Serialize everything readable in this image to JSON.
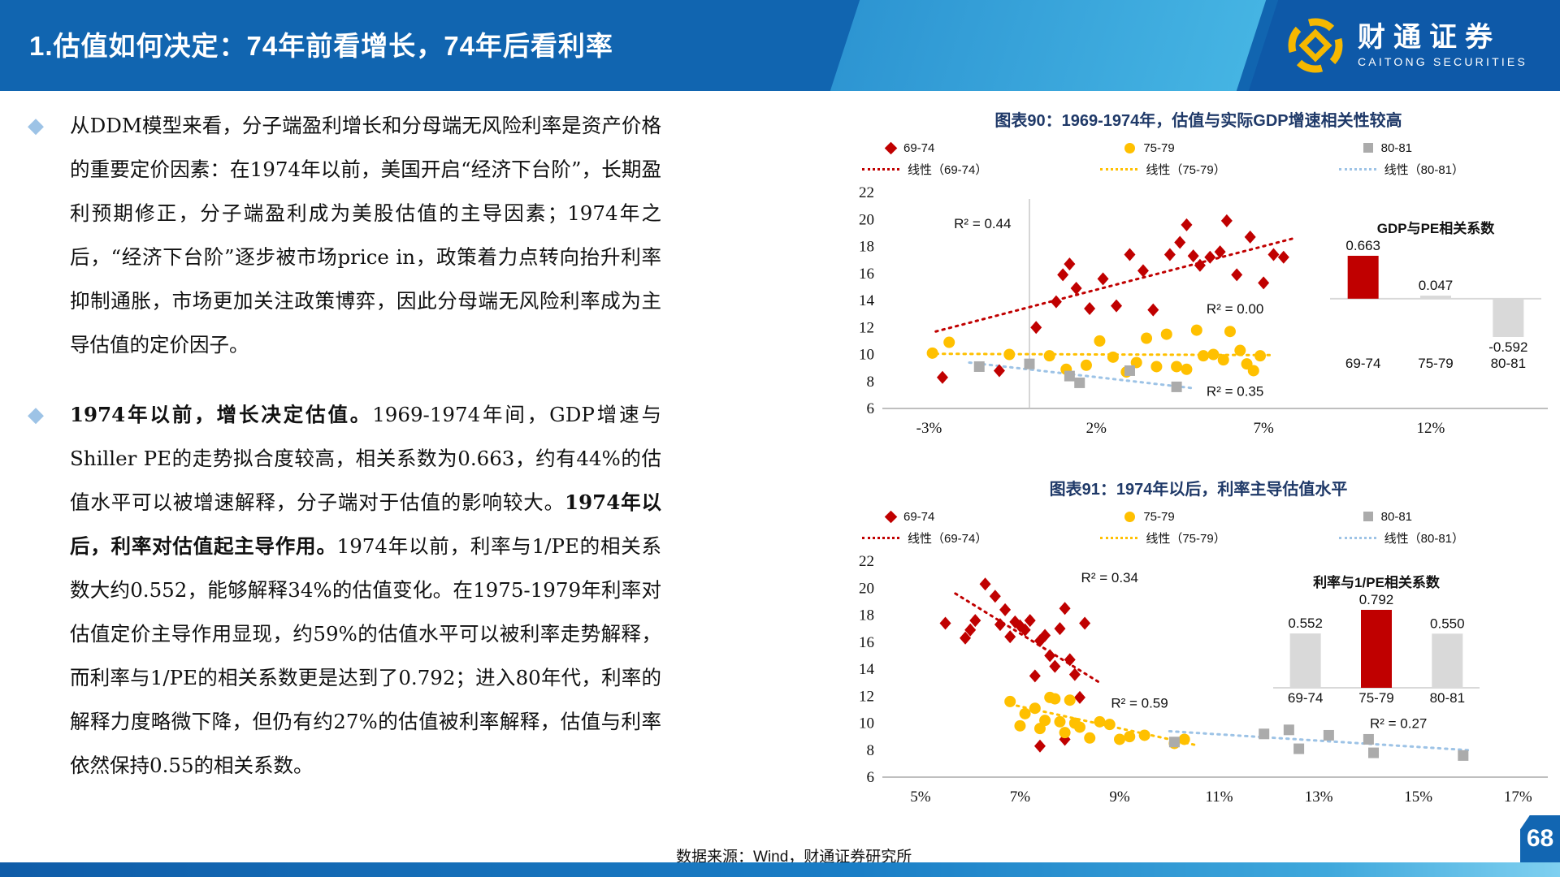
{
  "header": {
    "title": "1.估值如何决定：74年前看增长，74年后看利率",
    "logo": {
      "cn": "财通证券",
      "en": "CAITONG SECURITIES"
    }
  },
  "body": {
    "paragraphs": [
      {
        "segments": [
          {
            "bold": false,
            "text": "从DDM模型来看，分子端盈利增长和分母端无风险利率是资产价格的重要定价因素：在1974年以前，美国开启“经济下台阶”，长期盈利预期修正，分子端盈利成为美股估值的主导因素；1974年之后，“经济下台阶”逐步被市场price in，政策着力点转向抬升利率抑制通胀，市场更加关注政策博弈，因此分母端无风险利率成为主导估值的定价因子。"
          }
        ]
      },
      {
        "segments": [
          {
            "bold": true,
            "text": "1974年以前，增长决定估值。"
          },
          {
            "bold": false,
            "text": "1969-1974年间，GDP增速与Shiller PE的走势拟合度较高，相关系数为0.663，约有44%的估值水平可以被增速解释，分子端对于估值的影响较大。"
          },
          {
            "bold": true,
            "text": "1974年以后，利率对估值起主导作用。"
          },
          {
            "bold": false,
            "text": "1974年以前，利率与1/PE的相关系数大约0.552，能够解释34%的估值变化。在1975-1979年利率对估值定价主导作用显现，约59%的估值水平可以被利率走势解释，而利率与1/PE的相关系数更是达到了0.792；进入80年代，利率的解释力度略微下降，但仍有约27%的估值被利率解释，估值与利率依然保持0.55的相关系数。"
          }
        ]
      }
    ]
  },
  "footer": {
    "source": "数据来源：Wind，财通证券研究所",
    "page_number": "68"
  },
  "colors": {
    "header_blue": "#1165b0",
    "header_light": "#45b4e3",
    "navy": "#1f3968",
    "red": "#c00000",
    "yellow": "#ffc000",
    "gray": "#ababab",
    "light_blue": "#9dc3e6",
    "inset_gray": "#d9d9d9",
    "bullet": "#9dc3e6"
  },
  "chart_data": [
    {
      "type": "scatter",
      "title": "图表90：1969-1974年，估值与实际GDP增速相关性较高",
      "xlim": [
        -4.3,
        15.5
      ],
      "ylim": [
        6,
        22
      ],
      "xticks": [
        {
          "v": -3,
          "label": "-3%"
        },
        {
          "v": 2,
          "label": "2%"
        },
        {
          "v": 7,
          "label": "7%"
        },
        {
          "v": 12,
          "label": "12%"
        }
      ],
      "yticks": [
        6,
        8,
        10,
        12,
        14,
        16,
        18,
        20,
        22
      ],
      "vline_x": 0,
      "legend": {
        "markers": [
          {
            "label": "69-74",
            "shape": "diamond",
            "color": "#c00000"
          },
          {
            "label": "75-79",
            "shape": "circle",
            "color": "#ffc000"
          },
          {
            "label": "80-81",
            "shape": "square",
            "color": "#ababab"
          }
        ],
        "lines": [
          {
            "label": "线性（69-74）",
            "color": "#c00000"
          },
          {
            "label": "线性（75-79）",
            "color": "#ffc000"
          },
          {
            "label": "线性（80-81）",
            "color": "#9dc3e6"
          }
        ]
      },
      "series": [
        {
          "name": "69-74",
          "marker": "diamond",
          "color": "#c00000",
          "points": [
            [
              -2.6,
              8.3
            ],
            [
              -0.9,
              8.8
            ],
            [
              0.2,
              12.0
            ],
            [
              0.8,
              13.9
            ],
            [
              1.0,
              15.9
            ],
            [
              1.2,
              16.7
            ],
            [
              1.4,
              14.9
            ],
            [
              1.8,
              13.4
            ],
            [
              2.2,
              15.6
            ],
            [
              2.6,
              13.6
            ],
            [
              3.0,
              17.4
            ],
            [
              3.4,
              16.2
            ],
            [
              3.7,
              13.3
            ],
            [
              4.2,
              17.4
            ],
            [
              4.5,
              18.3
            ],
            [
              4.7,
              19.6
            ],
            [
              4.9,
              17.3
            ],
            [
              5.1,
              16.6
            ],
            [
              5.4,
              17.2
            ],
            [
              5.7,
              17.6
            ],
            [
              5.9,
              19.9
            ],
            [
              6.2,
              15.9
            ],
            [
              6.6,
              18.7
            ],
            [
              7.0,
              15.3
            ],
            [
              7.3,
              17.4
            ],
            [
              7.6,
              17.2
            ]
          ]
        },
        {
          "name": "75-79",
          "marker": "circle",
          "color": "#ffc000",
          "points": [
            [
              -2.9,
              10.1
            ],
            [
              -2.4,
              10.9
            ],
            [
              -0.6,
              10.0
            ],
            [
              0.6,
              9.9
            ],
            [
              1.1,
              8.9
            ],
            [
              1.7,
              9.2
            ],
            [
              2.1,
              11.0
            ],
            [
              2.5,
              9.8
            ],
            [
              2.9,
              8.7
            ],
            [
              3.2,
              9.4
            ],
            [
              3.5,
              11.2
            ],
            [
              3.8,
              9.1
            ],
            [
              4.1,
              11.5
            ],
            [
              4.4,
              9.1
            ],
            [
              4.7,
              8.9
            ],
            [
              5.0,
              11.8
            ],
            [
              5.2,
              9.9
            ],
            [
              5.5,
              10.0
            ],
            [
              5.8,
              9.6
            ],
            [
              6.0,
              11.7
            ],
            [
              6.3,
              10.3
            ],
            [
              6.5,
              9.3
            ],
            [
              6.7,
              8.8
            ],
            [
              6.9,
              9.9
            ]
          ]
        },
        {
          "name": "80-81",
          "marker": "square",
          "color": "#ababab",
          "points": [
            [
              -1.5,
              9.1
            ],
            [
              0.0,
              9.3
            ],
            [
              1.2,
              8.4
            ],
            [
              1.5,
              7.9
            ],
            [
              3.0,
              8.8
            ],
            [
              4.4,
              7.6
            ]
          ]
        }
      ],
      "trendlines": [
        {
          "name": "线性（69-74）",
          "color": "#c00000",
          "from": [
            -2.8,
            11.7
          ],
          "to": [
            7.9,
            18.6
          ]
        },
        {
          "name": "线性（75-79）",
          "color": "#ffc000",
          "from": [
            -3.0,
            10.05
          ],
          "to": [
            7.3,
            9.95
          ]
        },
        {
          "name": "线性（80-81）",
          "color": "#9dc3e6",
          "from": [
            -1.8,
            9.4
          ],
          "to": [
            4.9,
            7.5
          ]
        }
      ],
      "annotations": [
        {
          "text": "R² = 0.44",
          "x": -1.4,
          "y": 19.7
        },
        {
          "text": "R² = 0.00",
          "x": 6.15,
          "y": 13.4
        },
        {
          "text": "R² = 0.35",
          "x": 6.15,
          "y": 7.3
        }
      ],
      "inset": {
        "title": "GDP与PE相关系数",
        "categories": [
          "69-74",
          "75-79",
          "80-81"
        ],
        "values": [
          0.663,
          0.047,
          -0.592
        ],
        "value_labels": [
          "0.663",
          "0.047",
          "-0.592"
        ],
        "colors": [
          "#c00000",
          "#d9d9d9",
          "#d9d9d9"
        ]
      }
    },
    {
      "type": "scatter",
      "title": "图表91：1974年以后，利率主导估值水平",
      "xlim": [
        4.3,
        17.6
      ],
      "ylim": [
        6,
        22
      ],
      "xticks": [
        {
          "v": 5,
          "label": "5%"
        },
        {
          "v": 7,
          "label": "7%"
        },
        {
          "v": 9,
          "label": "9%"
        },
        {
          "v": 11,
          "label": "11%"
        },
        {
          "v": 13,
          "label": "13%"
        },
        {
          "v": 15,
          "label": "15%"
        },
        {
          "v": 17,
          "label": "17%"
        }
      ],
      "yticks": [
        6,
        8,
        10,
        12,
        14,
        16,
        18,
        20,
        22
      ],
      "vline_x": null,
      "legend": {
        "markers": [
          {
            "label": "69-74",
            "shape": "diamond",
            "color": "#c00000"
          },
          {
            "label": "75-79",
            "shape": "circle",
            "color": "#ffc000"
          },
          {
            "label": "80-81",
            "shape": "square",
            "color": "#ababab"
          }
        ],
        "lines": [
          {
            "label": "线性（69-74）",
            "color": "#c00000"
          },
          {
            "label": "线性（75-79）",
            "color": "#ffc000"
          },
          {
            "label": "线性（80-81）",
            "color": "#9dc3e6"
          }
        ]
      },
      "series": [
        {
          "name": "69-74",
          "marker": "diamond",
          "color": "#c00000",
          "points": [
            [
              5.5,
              17.4
            ],
            [
              5.9,
              16.3
            ],
            [
              6.0,
              16.9
            ],
            [
              6.1,
              17.6
            ],
            [
              6.3,
              20.3
            ],
            [
              6.5,
              19.4
            ],
            [
              6.6,
              17.3
            ],
            [
              6.7,
              18.4
            ],
            [
              6.8,
              16.4
            ],
            [
              6.9,
              17.5
            ],
            [
              7.0,
              17.2
            ],
            [
              7.1,
              16.9
            ],
            [
              7.2,
              17.6
            ],
            [
              7.3,
              13.5
            ],
            [
              7.4,
              16.1
            ],
            [
              7.5,
              16.5
            ],
            [
              7.6,
              15.0
            ],
            [
              7.7,
              14.2
            ],
            [
              7.8,
              17.0
            ],
            [
              7.9,
              18.5
            ],
            [
              8.0,
              14.7
            ],
            [
              8.1,
              13.6
            ],
            [
              8.2,
              11.9
            ],
            [
              8.3,
              17.4
            ],
            [
              7.4,
              8.3
            ],
            [
              7.9,
              8.8
            ]
          ]
        },
        {
          "name": "75-79",
          "marker": "circle",
          "color": "#ffc000",
          "points": [
            [
              6.8,
              11.6
            ],
            [
              7.0,
              9.8
            ],
            [
              7.1,
              10.7
            ],
            [
              7.3,
              11.1
            ],
            [
              7.4,
              9.6
            ],
            [
              7.5,
              10.2
            ],
            [
              7.6,
              11.9
            ],
            [
              7.7,
              11.8
            ],
            [
              7.8,
              10.1
            ],
            [
              7.9,
              9.3
            ],
            [
              8.0,
              11.7
            ],
            [
              8.1,
              10.0
            ],
            [
              8.2,
              9.7
            ],
            [
              8.4,
              8.9
            ],
            [
              8.6,
              10.1
            ],
            [
              8.8,
              9.9
            ],
            [
              9.0,
              8.8
            ],
            [
              9.2,
              9.0
            ],
            [
              9.5,
              9.1
            ],
            [
              10.1,
              8.5
            ],
            [
              10.3,
              8.8
            ]
          ]
        },
        {
          "name": "80-81",
          "marker": "square",
          "color": "#ababab",
          "points": [
            [
              10.1,
              8.6
            ],
            [
              11.9,
              9.2
            ],
            [
              12.4,
              9.5
            ],
            [
              12.6,
              8.1
            ],
            [
              13.2,
              9.1
            ],
            [
              14.0,
              8.8
            ],
            [
              14.1,
              7.8
            ],
            [
              15.9,
              7.6
            ]
          ]
        }
      ],
      "trendlines": [
        {
          "name": "线性（69-74）",
          "color": "#c00000",
          "from": [
            5.7,
            19.6
          ],
          "to": [
            8.6,
            13.0
          ]
        },
        {
          "name": "线性（75-79）",
          "color": "#ffc000",
          "from": [
            6.8,
            11.4
          ],
          "to": [
            10.5,
            8.4
          ]
        },
        {
          "name": "线性（80-81）",
          "color": "#9dc3e6",
          "from": [
            10.0,
            9.4
          ],
          "to": [
            16.0,
            8.0
          ]
        }
      ],
      "annotations": [
        {
          "text": "R² = 0.34",
          "x": 8.8,
          "y": 20.8
        },
        {
          "text": "R² = 0.59",
          "x": 9.4,
          "y": 11.5
        },
        {
          "text": "R² = 0.27",
          "x": 14.6,
          "y": 10.0
        }
      ],
      "inset": {
        "title": "利率与1/PE相关系数",
        "categories": [
          "69-74",
          "75-79",
          "80-81"
        ],
        "values": [
          0.552,
          0.792,
          0.55
        ],
        "value_labels": [
          "0.552",
          "0.792",
          "0.550"
        ],
        "colors": [
          "#d9d9d9",
          "#c00000",
          "#d9d9d9"
        ]
      }
    }
  ]
}
